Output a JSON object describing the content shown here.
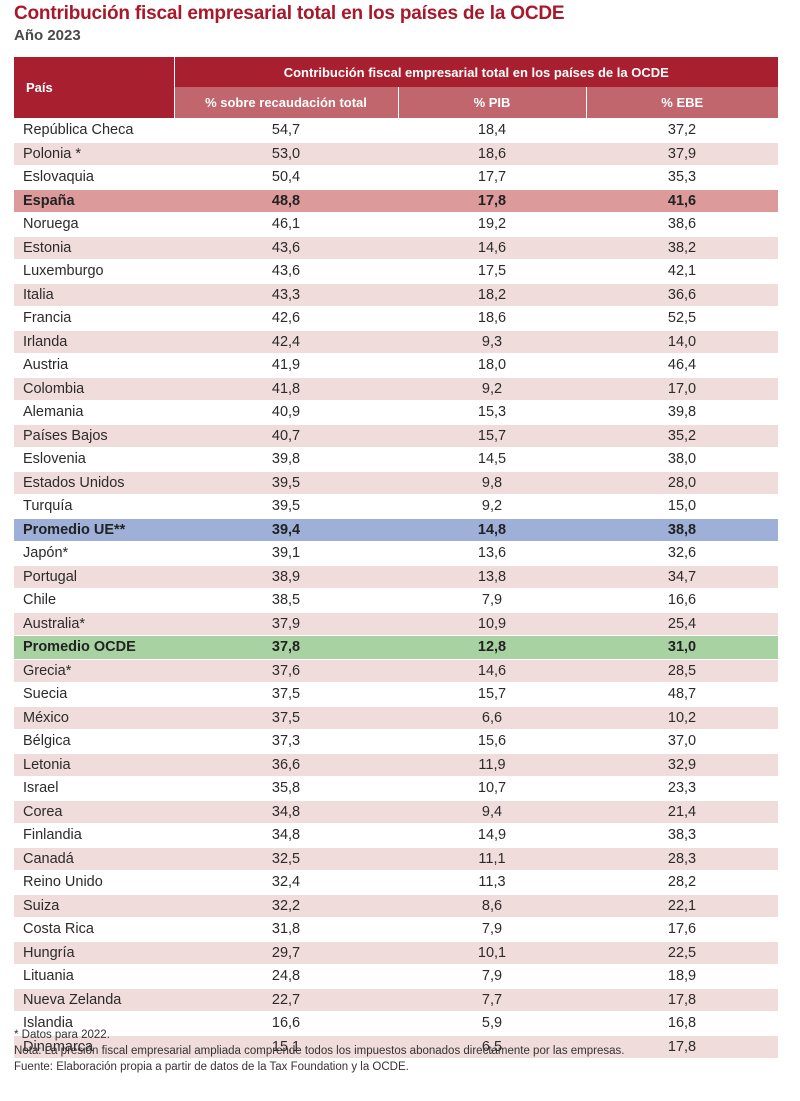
{
  "title": "Contribución fiscal empresarial total en los países de la OCDE",
  "subtitle": "Año 2023",
  "table": {
    "country_header": "País",
    "group_header": "Contribución fiscal empresarial total en los países de la OCDE",
    "columns": [
      "% sobre recaudación total",
      "% PIB",
      "% EBE"
    ],
    "rows": [
      {
        "country": "República Checa",
        "values": [
          "54,7",
          "18,4",
          "37,2"
        ],
        "highlight": ""
      },
      {
        "country": "Polonia *",
        "values": [
          "53,0",
          "18,6",
          "37,9"
        ],
        "highlight": ""
      },
      {
        "country": "Eslovaquia",
        "values": [
          "50,4",
          "17,7",
          "35,3"
        ],
        "highlight": ""
      },
      {
        "country": "España",
        "values": [
          "48,8",
          "17,8",
          "41,6"
        ],
        "highlight": "spain"
      },
      {
        "country": "Noruega",
        "values": [
          "46,1",
          "19,2",
          "38,6"
        ],
        "highlight": ""
      },
      {
        "country": "Estonia",
        "values": [
          "43,6",
          "14,6",
          "38,2"
        ],
        "highlight": ""
      },
      {
        "country": "Luxemburgo",
        "values": [
          "43,6",
          "17,5",
          "42,1"
        ],
        "highlight": ""
      },
      {
        "country": "Italia",
        "values": [
          "43,3",
          "18,2",
          "36,6"
        ],
        "highlight": ""
      },
      {
        "country": "Francia",
        "values": [
          "42,6",
          "18,6",
          "52,5"
        ],
        "highlight": ""
      },
      {
        "country": "Irlanda",
        "values": [
          "42,4",
          "9,3",
          "14,0"
        ],
        "highlight": ""
      },
      {
        "country": "Austria",
        "values": [
          "41,9",
          "18,0",
          "46,4"
        ],
        "highlight": ""
      },
      {
        "country": "Colombia",
        "values": [
          "41,8",
          "9,2",
          "17,0"
        ],
        "highlight": ""
      },
      {
        "country": "Alemania",
        "values": [
          "40,9",
          "15,3",
          "39,8"
        ],
        "highlight": ""
      },
      {
        "country": "Países Bajos",
        "values": [
          "40,7",
          "15,7",
          "35,2"
        ],
        "highlight": ""
      },
      {
        "country": "Eslovenia",
        "values": [
          "39,8",
          "14,5",
          "38,0"
        ],
        "highlight": ""
      },
      {
        "country": "Estados Unidos",
        "values": [
          "39,5",
          "9,8",
          "28,0"
        ],
        "highlight": ""
      },
      {
        "country": "Turquía",
        "values": [
          "39,5",
          "9,2",
          "15,0"
        ],
        "highlight": ""
      },
      {
        "country": "Promedio UE**",
        "values": [
          "39,4",
          "14,8",
          "38,8"
        ],
        "highlight": "ue"
      },
      {
        "country": "Japón*",
        "values": [
          "39,1",
          "13,6",
          "32,6"
        ],
        "highlight": ""
      },
      {
        "country": "Portugal",
        "values": [
          "38,9",
          "13,8",
          "34,7"
        ],
        "highlight": ""
      },
      {
        "country": "Chile",
        "values": [
          "38,5",
          "7,9",
          "16,6"
        ],
        "highlight": ""
      },
      {
        "country": "Australia*",
        "values": [
          "37,9",
          "10,9",
          "25,4"
        ],
        "highlight": ""
      },
      {
        "country": "Promedio OCDE",
        "values": [
          "37,8",
          "12,8",
          "31,0"
        ],
        "highlight": "ocde"
      },
      {
        "country": "Grecia*",
        "values": [
          "37,6",
          "14,6",
          "28,5"
        ],
        "highlight": ""
      },
      {
        "country": "Suecia",
        "values": [
          "37,5",
          "15,7",
          "48,7"
        ],
        "highlight": ""
      },
      {
        "country": "México",
        "values": [
          "37,5",
          "6,6",
          "10,2"
        ],
        "highlight": ""
      },
      {
        "country": "Bélgica",
        "values": [
          "37,3",
          "15,6",
          "37,0"
        ],
        "highlight": ""
      },
      {
        "country": "Letonia",
        "values": [
          "36,6",
          "11,9",
          "32,9"
        ],
        "highlight": ""
      },
      {
        "country": "Israel",
        "values": [
          "35,8",
          "10,7",
          "23,3"
        ],
        "highlight": ""
      },
      {
        "country": "Corea",
        "values": [
          "34,8",
          "9,4",
          "21,4"
        ],
        "highlight": ""
      },
      {
        "country": "Finlandia",
        "values": [
          "34,8",
          "14,9",
          "38,3"
        ],
        "highlight": ""
      },
      {
        "country": "Canadá",
        "values": [
          "32,5",
          "11,1",
          "28,3"
        ],
        "highlight": ""
      },
      {
        "country": "Reino Unido",
        "values": [
          "32,4",
          "11,3",
          "28,2"
        ],
        "highlight": ""
      },
      {
        "country": "Suiza",
        "values": [
          "32,2",
          "8,6",
          "22,1"
        ],
        "highlight": ""
      },
      {
        "country": "Costa Rica",
        "values": [
          "31,8",
          "7,9",
          "17,6"
        ],
        "highlight": ""
      },
      {
        "country": "Hungría",
        "values": [
          "29,7",
          "10,1",
          "22,5"
        ],
        "highlight": ""
      },
      {
        "country": "Lituania",
        "values": [
          "24,8",
          "7,9",
          "18,9"
        ],
        "highlight": ""
      },
      {
        "country": "Nueva Zelanda",
        "values": [
          "22,7",
          "7,7",
          "17,8"
        ],
        "highlight": ""
      },
      {
        "country": "Islandia",
        "values": [
          "16,6",
          "5,9",
          "16,8"
        ],
        "highlight": ""
      },
      {
        "country": "Dinamarca",
        "values": [
          "15,1",
          "6,5",
          "17,8"
        ],
        "highlight": ""
      }
    ]
  },
  "notes": [
    "* Datos para 2022.",
    "Nota: La presión fiscal empresarial ampliada comprende todos los impuestos abonados directamente por las empresas.",
    "Fuente: Elaboración propia a partir de datos de la Tax Foundation y la OCDE."
  ],
  "colors": {
    "title": "#a8182a",
    "header": "#a8202f",
    "subheader": "#c1666c",
    "stripe": "#f1dcdc",
    "spain": "#dc9a9a",
    "promedio_ue": "#9eb0d8",
    "promedio_ocde": "#a9d2a3"
  }
}
